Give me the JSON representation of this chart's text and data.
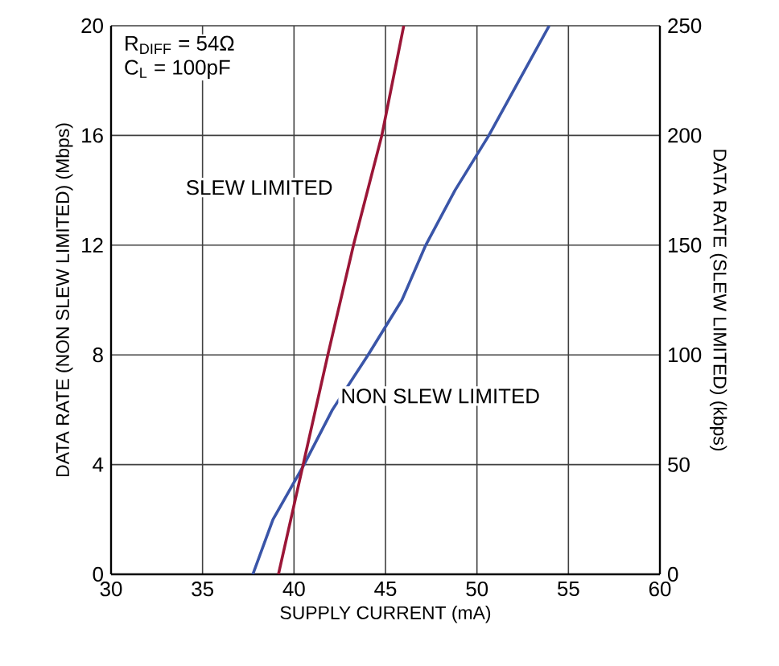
{
  "chart_data": {
    "type": "line",
    "xlabel": "SUPPLY CURRENT (mA)",
    "ylabel": "DATA RATE (NON SLEW LIMITED) (Mbps)",
    "y2label": "DATA RATE (SLEW LIMITED) (kbps)",
    "annotations": [
      "R$_{DIFF}$ = 54Ω",
      "C$_{L}$ = 100pF"
    ],
    "xlim": [
      30,
      60
    ],
    "xticks": [
      30,
      35,
      40,
      45,
      50,
      55,
      60
    ],
    "ylim": [
      0,
      20
    ],
    "yticks": [
      0,
      4,
      8,
      12,
      16,
      20
    ],
    "y2lim": [
      0,
      250
    ],
    "y2ticks": [
      0,
      50,
      100,
      150,
      200,
      250
    ],
    "grid": true,
    "marker": "none",
    "line_style": "solid",
    "series": [
      {
        "name": "SLEW LIMITED",
        "color": "#9b1637",
        "axis": "y2",
        "x": [
          39.15,
          40.5,
          41.85,
          43.25,
          44.8,
          46.0
        ],
        "values": [
          0,
          50,
          100,
          150,
          200,
          250
        ]
      },
      {
        "name": "NON SLEW LIMITED",
        "color": "#3a55a8",
        "x": [
          37.75,
          38.85,
          40.55,
          42.1,
          44.05,
          45.9,
          47.2,
          48.8,
          50.65,
          52.3,
          53.95
        ],
        "values": [
          0,
          2,
          4,
          6,
          8,
          10,
          12,
          14,
          16,
          18,
          20
        ]
      }
    ]
  }
}
